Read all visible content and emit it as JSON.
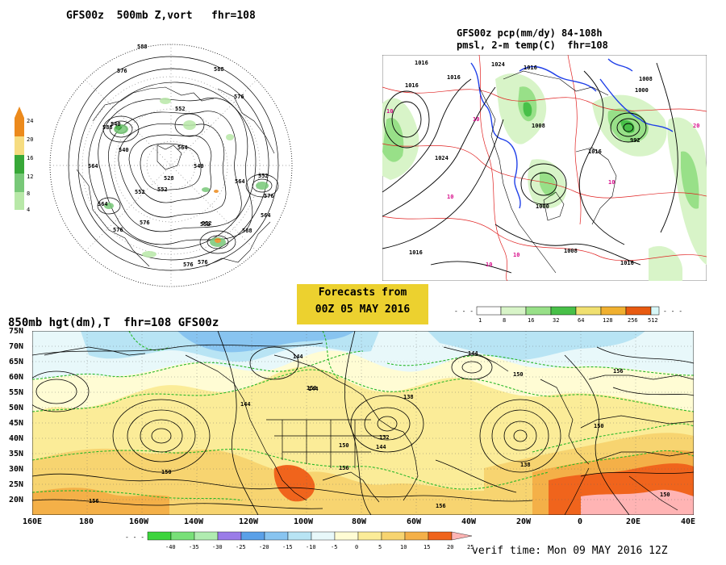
{
  "panel_500mb": {
    "title": "GFS00z  500mb Z,vort   fhr=108",
    "legend_ticks": [
      "24",
      "20",
      "16",
      "12",
      "8",
      "4"
    ],
    "legend_colors": [
      "#e8f8e8",
      "#b8e8a8",
      "#78c878",
      "#38a838",
      "#f6dc80",
      "#ec8a1c"
    ],
    "contour_labels": [
      "588",
      "576",
      "588",
      "576",
      "588",
      "552",
      "540",
      "564",
      "564",
      "552",
      "552",
      "564",
      "540",
      "576",
      "552",
      "564",
      "552",
      "576",
      "576",
      "528",
      "540",
      "552",
      "576",
      "564",
      "576",
      "588"
    ]
  },
  "panel_precip": {
    "title_line1": "GFS00z pcp(mm/dy) 84-108h",
    "title_line2": "pmsl, 2-m temp(C)  fhr=108",
    "legend_ticks": [
      "1",
      "8",
      "16",
      "32",
      "64",
      "128",
      "256",
      "512"
    ],
    "legend_colors": [
      "#ffffff",
      "#d8f4c8",
      "#98e088",
      "#48c048",
      "#f0e070",
      "#f0b030",
      "#e85a10",
      "#d8f8f8"
    ],
    "pressure_labels": [
      "1016",
      "1016",
      "1024",
      "1016",
      "1008",
      "992",
      "1000",
      "1016",
      "1024",
      "1016",
      "1000",
      "1008",
      "1016",
      "1008",
      "1016"
    ],
    "temp_labels": [
      "10",
      "10",
      "10",
      "10",
      "10",
      "20",
      "10"
    ]
  },
  "forecast_box": {
    "line1": "Forecasts from",
    "line2": "00Z 05 MAY 2016",
    "color": "#ecd12f"
  },
  "panel_850mb": {
    "title": "850mb hgt(dm),T  fhr=108 GFS00z",
    "lat_labels": [
      "75N",
      "70N",
      "65N",
      "60N",
      "55N",
      "50N",
      "45N",
      "40N",
      "35N",
      "30N",
      "25N",
      "20N"
    ],
    "lon_labels": [
      "160E",
      "180",
      "160W",
      "140W",
      "120W",
      "100W",
      "80W",
      "60W",
      "40W",
      "20W",
      "0",
      "20E",
      "40E"
    ],
    "height_labels": [
      "144",
      "150",
      "156",
      "150",
      "144",
      "144",
      "138",
      "150",
      "132",
      "144",
      "156",
      "150",
      "150",
      "156",
      "138",
      "156",
      "150",
      "144"
    ],
    "temp_legend_ticks": [
      "-40",
      "-35",
      "-30",
      "-25",
      "-20",
      "-15",
      "-10",
      "-5",
      "0",
      "5",
      "10",
      "15",
      "20",
      "25"
    ],
    "temp_legend_colors": [
      "#3cd43c",
      "#78e078",
      "#b0ecb0",
      "#9a7ce8",
      "#5aa0e8",
      "#88c4f0",
      "#b8e4f4",
      "#e8f8fa",
      "#fffcd4",
      "#fbec98",
      "#f7d470",
      "#f4b048",
      "#f0641c",
      "#ffb4b4"
    ],
    "verif_time": "verif time: Mon 09 MAY 2016 12Z"
  }
}
